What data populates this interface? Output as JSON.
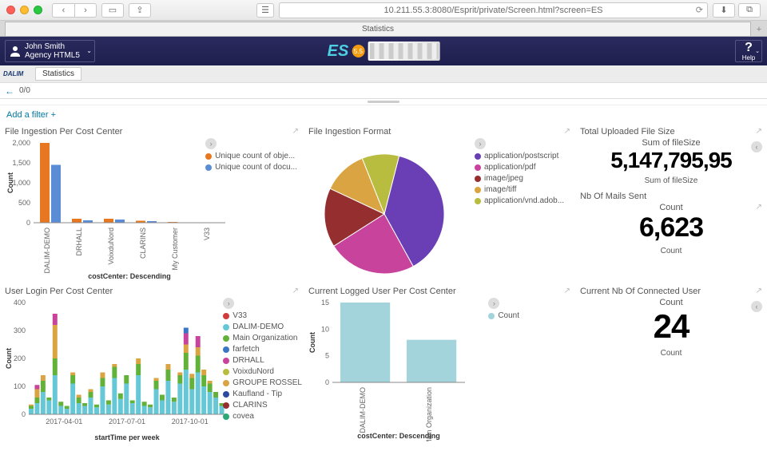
{
  "browser": {
    "url": "10.211.55.3:8080/Esprit/private/Screen.html?screen=ES",
    "tab_title": "Statistics"
  },
  "header": {
    "user_name": "John Smith",
    "user_org": "Agency HTML5",
    "logo_text": "ES",
    "version": "5.5",
    "help_label": "Help"
  },
  "secbar": {
    "brand": "DALIM",
    "tab": "Statistics"
  },
  "crumb": {
    "count": "0/0"
  },
  "filter": {
    "add_label": "Add a filter",
    "plus": "+"
  },
  "panels": {
    "ingestion_cost": {
      "title": "File Ingestion Per Cost Center",
      "y_title": "Count",
      "x_title": "costCenter: Descending",
      "y_ticks": [
        "0",
        "500",
        "1,000",
        "1,500",
        "2,000"
      ],
      "y_max": 2000,
      "legend": [
        {
          "label": "Unique count of obje...",
          "color": "#e87722"
        },
        {
          "label": "Unique count of docu...",
          "color": "#5b8dd6"
        }
      ],
      "categories": [
        "DALIM-DEMO",
        "DRHALL",
        "VoixduNord",
        "CLARINS",
        "My Customer",
        "V33"
      ],
      "series1": [
        2000,
        100,
        100,
        50,
        20,
        10
      ],
      "series2": [
        1450,
        60,
        80,
        40,
        10,
        5
      ],
      "colors": [
        "#e87722",
        "#5b8dd6"
      ]
    },
    "ingestion_format": {
      "title": "File Ingestion Format",
      "legend": [
        {
          "label": "application/postscript",
          "color": "#6a3fb5"
        },
        {
          "label": "application/pdf",
          "color": "#c8439b"
        },
        {
          "label": "image/jpeg",
          "color": "#952e2e"
        },
        {
          "label": "image/tiff",
          "color": "#d9a441"
        },
        {
          "label": "application/vnd.adob...",
          "color": "#b8bc3f"
        }
      ],
      "slices": [
        {
          "color": "#6a3fb5",
          "pct": 38
        },
        {
          "color": "#c8439b",
          "pct": 24
        },
        {
          "color": "#952e2e",
          "pct": 16
        },
        {
          "color": "#d9a441",
          "pct": 12
        },
        {
          "color": "#b8bc3f",
          "pct": 10
        }
      ]
    },
    "total_size": {
      "title": "Total Uploaded File Size",
      "top_label": "Sum of fileSize",
      "value": "5,147,795,95",
      "bottom_label": "Sum of fileSize"
    },
    "mails_sent": {
      "title": "Nb Of Mails Sent",
      "top_label": "Count",
      "value": "6,623",
      "bottom_label": "Count"
    },
    "user_login": {
      "title": "User Login Per Cost Center",
      "y_title": "Count",
      "x_title": "startTime per week",
      "y_ticks": [
        "0",
        "100",
        "200",
        "300",
        "400"
      ],
      "y_max": 400,
      "x_labels": [
        "2017-04-01",
        "2017-07-01",
        "2017-10-01"
      ],
      "legend": [
        {
          "label": "V33",
          "color": "#d13b3b"
        },
        {
          "label": "DALIM-DEMO",
          "color": "#66c8d6"
        },
        {
          "label": "Main Organization",
          "color": "#62b23a"
        },
        {
          "label": "farfetch",
          "color": "#3a76c4"
        },
        {
          "label": "DRHALL",
          "color": "#c8439b"
        },
        {
          "label": "VoixduNord",
          "color": "#b8bc3f"
        },
        {
          "label": "GROUPE ROSSEL",
          "color": "#d9a441"
        },
        {
          "label": "Kaufland - Tip",
          "color": "#2e4a9e"
        },
        {
          "label": "CLARINS",
          "color": "#952e2e"
        },
        {
          "label": "covea",
          "color": "#2aa876"
        }
      ],
      "bars": [
        [
          0,
          20,
          10,
          5
        ],
        [
          0,
          40,
          20,
          30,
          15
        ],
        [
          0,
          80,
          40,
          20
        ],
        [
          0,
          50,
          10
        ],
        [
          0,
          140,
          60,
          120,
          40
        ],
        [
          0,
          30,
          15
        ],
        [
          0,
          20,
          10
        ],
        [
          0,
          110,
          30,
          10
        ],
        [
          0,
          40,
          20,
          10
        ],
        [
          0,
          30,
          10
        ],
        [
          0,
          60,
          20,
          10
        ],
        [
          0,
          25,
          10
        ],
        [
          0,
          100,
          30,
          20
        ],
        [
          0,
          35,
          15
        ],
        [
          0,
          130,
          40,
          10
        ],
        [
          0,
          55,
          20
        ],
        [
          0,
          110,
          30
        ],
        [
          0,
          40,
          10
        ],
        [
          0,
          140,
          40,
          20
        ],
        [
          0,
          30,
          15
        ],
        [
          0,
          25,
          10
        ],
        [
          0,
          90,
          30,
          10
        ],
        [
          0,
          50,
          20
        ],
        [
          0,
          120,
          40,
          20
        ],
        [
          0,
          45,
          15
        ],
        [
          0,
          110,
          30,
          10
        ],
        [
          0,
          160,
          60,
          30,
          40,
          20
        ],
        [
          0,
          90,
          40,
          15
        ],
        [
          0,
          150,
          60,
          30,
          40
        ],
        [
          0,
          100,
          40,
          20
        ],
        [
          0,
          80,
          30,
          10
        ],
        [
          0,
          60,
          20
        ],
        [
          0,
          30,
          10
        ]
      ],
      "stack_colors": [
        "#66c8d6",
        "#62b23a",
        "#d9a441",
        "#c8439b",
        "#3a76c4",
        "#952e2e"
      ]
    },
    "logged_user": {
      "title": "Current Logged User Per Cost Center",
      "y_title": "Count",
      "x_title": "costCenter: Descending",
      "y_ticks": [
        "0",
        "5",
        "10",
        "15"
      ],
      "y_max": 15,
      "legend": [
        {
          "label": "Count",
          "color": "#a3d4dc"
        }
      ],
      "categories": [
        "DALIM-DEMO",
        "Main Organization"
      ],
      "values": [
        15,
        8
      ],
      "bar_color": "#a3d4dc"
    },
    "connected": {
      "title": "Current Nb Of Connected User",
      "top_label": "Count",
      "value": "24",
      "bottom_label": "Count"
    }
  }
}
